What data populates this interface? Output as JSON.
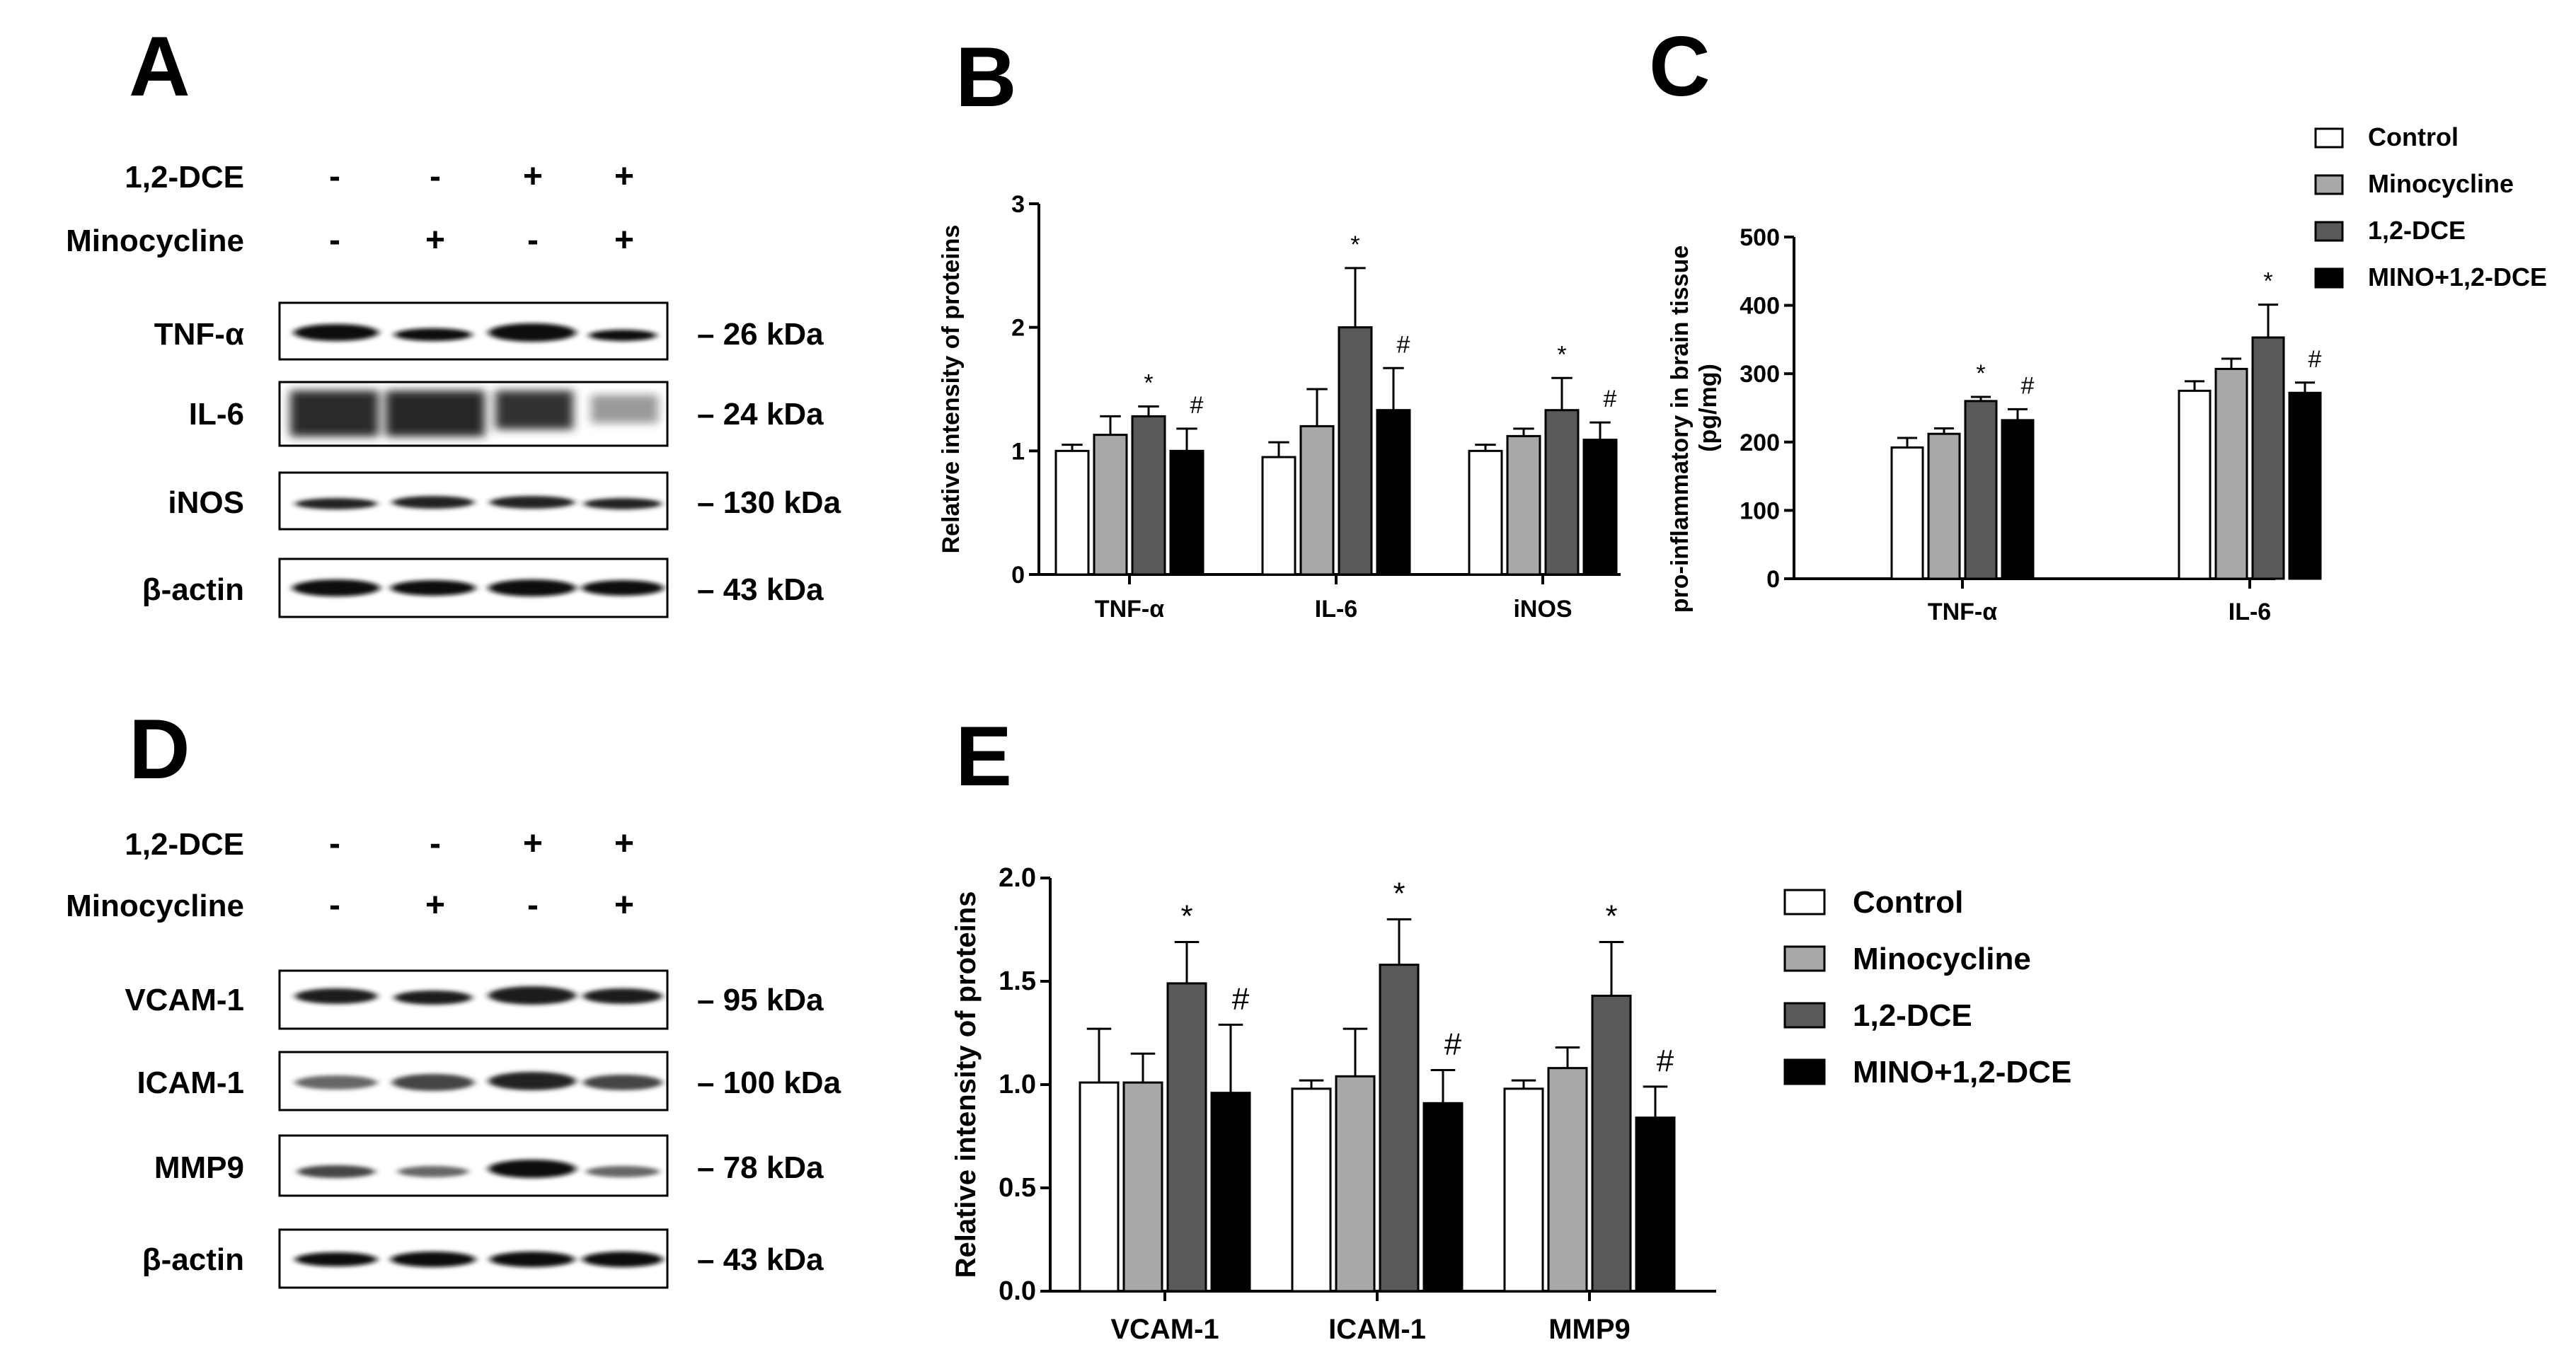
{
  "colors": {
    "control": "#ffffff",
    "minocycline": "#a8a8a8",
    "dce": "#595959",
    "mino_dce": "#000000"
  },
  "panels": {
    "A": "A",
    "B": "B",
    "C": "C",
    "D": "D",
    "E": "E"
  },
  "blot_A": {
    "treatments": [
      {
        "label": "1,2-DCE",
        "signs": [
          "-",
          "-",
          "+",
          "+"
        ]
      },
      {
        "label": "Minocycline",
        "signs": [
          "-",
          "+",
          "-",
          "+"
        ]
      }
    ],
    "bands": [
      {
        "protein": "TNF-α",
        "kda": "– 26 kDa"
      },
      {
        "protein": "IL-6",
        "kda": "– 24 kDa"
      },
      {
        "protein": "iNOS",
        "kda": "– 130 kDa"
      },
      {
        "protein": "β-actin",
        "kda": "– 43 kDa"
      }
    ]
  },
  "blot_D": {
    "treatments": [
      {
        "label": "1,2-DCE",
        "signs": [
          "-",
          "-",
          "+",
          "+"
        ]
      },
      {
        "label": "Minocycline",
        "signs": [
          "-",
          "+",
          "-",
          "+"
        ]
      }
    ],
    "bands": [
      {
        "protein": "VCAM-1",
        "kda": "– 95 kDa"
      },
      {
        "protein": "ICAM-1",
        "kda": "– 100 kDa"
      },
      {
        "protein": "MMP9",
        "kda": "– 78 kDa"
      },
      {
        "protein": "β-actin",
        "kda": "– 43 kDa"
      }
    ]
  },
  "chart_data": [
    {
      "id": "B",
      "type": "bar",
      "ylabel": "Relative intensity of proteins",
      "ylim": [
        0,
        3
      ],
      "yticks": [
        "0",
        "1",
        "2",
        "3"
      ],
      "categories": [
        "TNF-α",
        "IL-6",
        "iNOS"
      ],
      "series": [
        {
          "name": "Control",
          "values": [
            1.0,
            0.95,
            1.0
          ],
          "errors": [
            0.05,
            0.12,
            0.05
          ]
        },
        {
          "name": "Minocycline",
          "values": [
            1.13,
            1.2,
            1.12
          ],
          "errors": [
            0.15,
            0.3,
            0.06
          ]
        },
        {
          "name": "1,2-DCE",
          "values": [
            1.28,
            2.0,
            1.33
          ],
          "errors": [
            0.08,
            0.48,
            0.26
          ]
        },
        {
          "name": "MINO+1,2-DCE",
          "values": [
            1.0,
            1.33,
            1.09
          ],
          "errors": [
            0.18,
            0.34,
            0.14
          ]
        }
      ],
      "annotations": [
        {
          "category": 0,
          "series": 2,
          "text": "*"
        },
        {
          "category": 0,
          "series": 3,
          "text": "#"
        },
        {
          "category": 1,
          "series": 2,
          "text": "*"
        },
        {
          "category": 1,
          "series": 3,
          "text": "#"
        },
        {
          "category": 2,
          "series": 2,
          "text": "*"
        },
        {
          "category": 2,
          "series": 3,
          "text": "#"
        }
      ]
    },
    {
      "id": "C",
      "type": "bar",
      "ylabel_line1": "pro-inflammatory in brain tissue",
      "ylabel_line2": "(pg/mg)",
      "ylim": [
        0,
        500
      ],
      "yticks": [
        "0",
        "100",
        "200",
        "300",
        "400",
        "500"
      ],
      "categories": [
        "TNF-α",
        "IL-6"
      ],
      "series": [
        {
          "name": "Control",
          "values": [
            192,
            275
          ],
          "errors": [
            14,
            14
          ]
        },
        {
          "name": "Minocycline",
          "values": [
            212,
            307
          ],
          "errors": [
            8,
            15
          ]
        },
        {
          "name": "1,2-DCE",
          "values": [
            260,
            353
          ],
          "errors": [
            6,
            48
          ]
        },
        {
          "name": "MINO+1,2-DCE",
          "values": [
            232,
            272
          ],
          "errors": [
            16,
            15
          ]
        }
      ],
      "legend": [
        "Control",
        "Minocycline",
        "1,2-DCE",
        "MINO+1,2-DCE"
      ],
      "annotations": [
        {
          "category": 0,
          "series": 2,
          "text": "*"
        },
        {
          "category": 0,
          "series": 3,
          "text": "#"
        },
        {
          "category": 1,
          "series": 2,
          "text": "*"
        },
        {
          "category": 1,
          "series": 3,
          "text": "#"
        }
      ]
    },
    {
      "id": "E",
      "type": "bar",
      "ylabel": "Relative intensity of proteins",
      "ylim": [
        0,
        2.0
      ],
      "yticks": [
        "0.0",
        "0.5",
        "1.0",
        "1.5",
        "2.0"
      ],
      "categories": [
        "VCAM-1",
        "ICAM-1",
        "MMP9"
      ],
      "series": [
        {
          "name": "Control",
          "values": [
            1.01,
            0.98,
            0.98
          ],
          "errors": [
            0.26,
            0.04,
            0.04
          ]
        },
        {
          "name": "Minocycline",
          "values": [
            1.01,
            1.04,
            1.08
          ],
          "errors": [
            0.14,
            0.23,
            0.1
          ]
        },
        {
          "name": "1,2-DCE",
          "values": [
            1.49,
            1.58,
            1.43
          ],
          "errors": [
            0.2,
            0.22,
            0.26
          ]
        },
        {
          "name": "MINO+1,2-DCE",
          "values": [
            0.96,
            0.91,
            0.84
          ],
          "errors": [
            0.33,
            0.16,
            0.15
          ]
        }
      ],
      "legend": [
        "Control",
        "Minocycline",
        "1,2-DCE",
        "MINO+1,2-DCE"
      ],
      "annotations": [
        {
          "category": 0,
          "series": 2,
          "text": "*"
        },
        {
          "category": 0,
          "series": 3,
          "text": "#"
        },
        {
          "category": 1,
          "series": 2,
          "text": "*"
        },
        {
          "category": 1,
          "series": 3,
          "text": "#"
        },
        {
          "category": 2,
          "series": 2,
          "text": "*"
        },
        {
          "category": 2,
          "series": 3,
          "text": "#"
        }
      ]
    }
  ]
}
